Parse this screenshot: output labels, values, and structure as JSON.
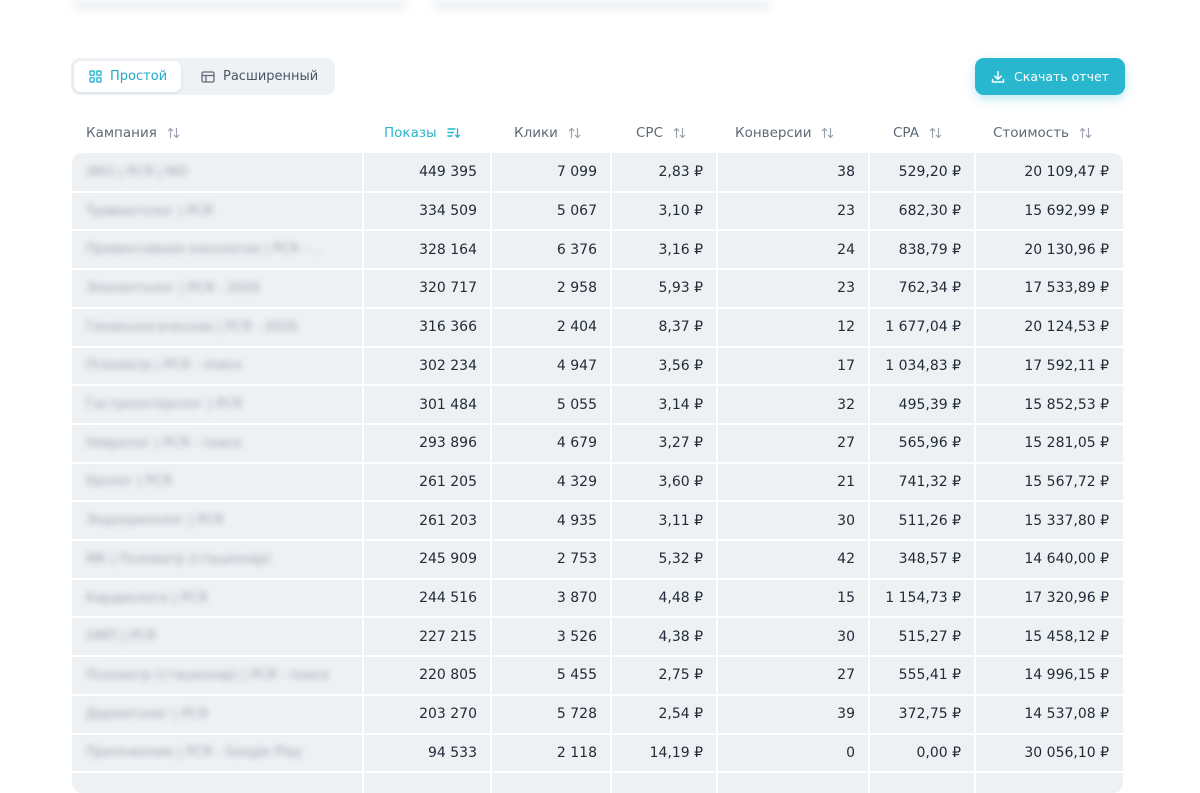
{
  "view_toggle": {
    "simple_label": "Простой",
    "extended_label": "Расширенный"
  },
  "download_button": {
    "label": "Скачать отчет"
  },
  "table": {
    "headers": [
      "Кампания",
      "Показы",
      "Клики",
      "CPC",
      "Конверсии",
      "CPA",
      "Стоимость"
    ],
    "active_sort_column": "Показы",
    "rows": [
      [
        "ЭКО | РСЯ | МО",
        "449 395",
        "7 099",
        "2,83 ₽",
        "38",
        "529,20 ₽",
        "20 109,47 ₽"
      ],
      [
        "Травматолог | РСЯ",
        "334 509",
        "5 067",
        "3,10 ₽",
        "23",
        "682,30 ₽",
        "15 692,99 ₽"
      ],
      [
        "Превентивная онкология | РСЯ - ...",
        "328 164",
        "6 376",
        "3,16 ₽",
        "24",
        "838,79 ₽",
        "20 130,96 ₽"
      ],
      [
        "Эпилептолог | РСЯ - 2026",
        "320 717",
        "2 958",
        "5,93 ₽",
        "23",
        "762,34 ₽",
        "17 533,89 ₽"
      ],
      [
        "Гинекологическая | РСЯ - 2026",
        "316 366",
        "2 404",
        "8,37 ₽",
        "12",
        "1 677,04 ₽",
        "20 124,53 ₽"
      ],
      [
        "Психиатр | РСЯ - поиск",
        "302 234",
        "4 947",
        "3,56 ₽",
        "17",
        "1 034,83 ₽",
        "17 592,11 ₽"
      ],
      [
        "Гастроэнтеролог | РСЯ",
        "301 484",
        "5 055",
        "3,14 ₽",
        "32",
        "495,39 ₽",
        "15 852,53 ₽"
      ],
      [
        "Невролог | РСЯ - поиск",
        "293 896",
        "4 679",
        "3,27 ₽",
        "27",
        "565,96 ₽",
        "15 281,05 ₽"
      ],
      [
        "Уролог | РСЯ",
        "261 205",
        "4 329",
        "3,60 ₽",
        "21",
        "741,32 ₽",
        "15 567,72 ₽"
      ],
      [
        "Эндокринолог | РСЯ",
        "261 203",
        "4 935",
        "3,11 ₽",
        "30",
        "511,26 ₽",
        "15 337,80 ₽"
      ],
      [
        "МК | Психиатр (стационар)",
        "245 909",
        "2 753",
        "5,32 ₽",
        "42",
        "348,57 ₽",
        "14 640,00 ₽"
      ],
      [
        "Кардиологи | РСЯ",
        "244 516",
        "3 870",
        "4,48 ₽",
        "15",
        "1 154,73 ₽",
        "17 320,96 ₽"
      ],
      [
        "ОМП | РСЯ",
        "227 215",
        "3 526",
        "4,38 ₽",
        "30",
        "515,27 ₽",
        "15 458,12 ₽"
      ],
      [
        "Психиатр (стационар) | РСЯ - поиск",
        "220 805",
        "5 455",
        "2,75 ₽",
        "27",
        "555,41 ₽",
        "14 996,15 ₽"
      ],
      [
        "Дерматолог | РСЯ",
        "203 270",
        "5 728",
        "2,54 ₽",
        "39",
        "372,75 ₽",
        "14 537,08 ₽"
      ],
      [
        "Приложение | РСЯ - Google Play",
        "94 533",
        "2 118",
        "14,19 ₽",
        "0",
        "0,00 ₽",
        "30 056,10 ₽"
      ]
    ]
  },
  "colors": {
    "accent": "#29b6cf",
    "table_bg": "#eef1f4",
    "header_text": "#5e6876"
  },
  "icons": {
    "simple": "grid-icon",
    "extended": "table-icon",
    "download": "download-icon",
    "sort": "sort-arrows-icon",
    "sort_active": "sort-desc-icon"
  }
}
